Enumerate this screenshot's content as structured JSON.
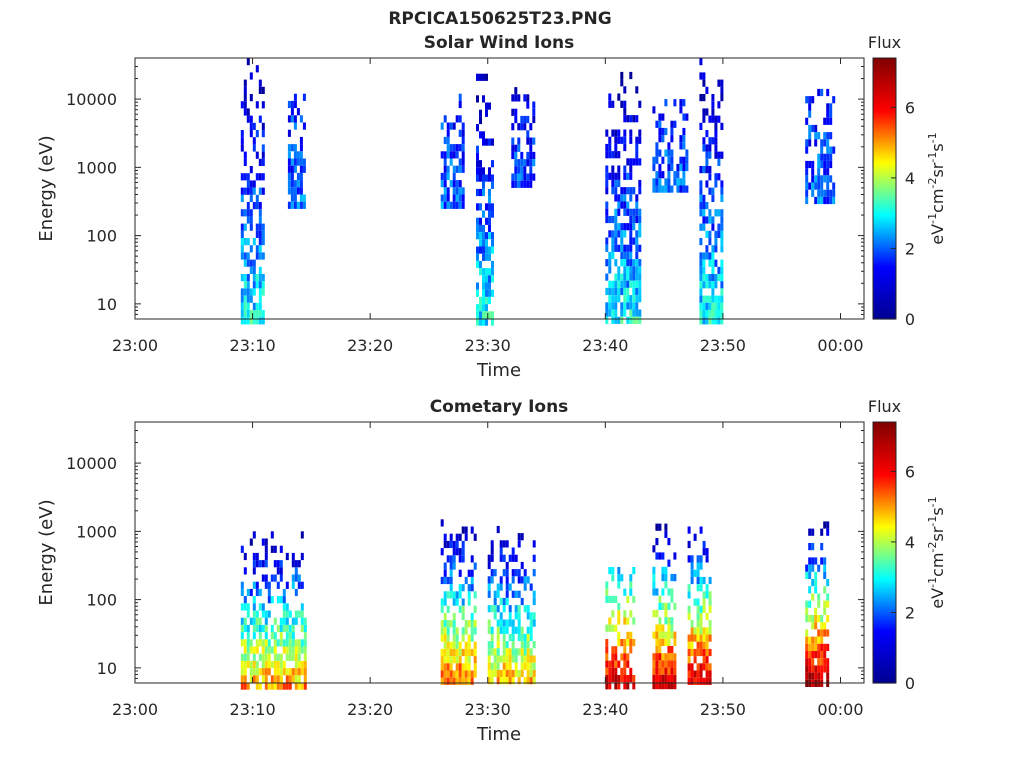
{
  "figure": {
    "title": "RPCICA150625T23.PNG"
  },
  "colorbar": {
    "label": "Flux",
    "unit_parts": [
      "eV",
      "-1",
      "cm",
      "-2",
      "sr",
      "-1",
      "s",
      "-1"
    ],
    "ticks": [
      0,
      2,
      4,
      6
    ],
    "range": [
      0,
      7.4
    ],
    "colormap": [
      "#00008f",
      "#0000ff",
      "#00ffff",
      "#ffff00",
      "#ff0000",
      "#800000"
    ]
  },
  "chart_data": [
    {
      "type": "heatmap",
      "title": "Solar Wind Ions",
      "xlabel": "Time",
      "ylabel": "Energy (eV)",
      "xlim": [
        "23:00",
        "00:02"
      ],
      "x_ticks": [
        "23:00",
        "23:10",
        "23:20",
        "23:30",
        "23:40",
        "23:50",
        "00:00"
      ],
      "y_scale": "log",
      "ylim": [
        6,
        40000
      ],
      "y_ticks": [
        10,
        100,
        1000,
        10000
      ],
      "colorbar_label": "Flux",
      "bursts": [
        {
          "t_start": "23:09",
          "t_end": "23:11",
          "e_min": 6,
          "e_max": 40000,
          "flux_low_energy": 3.0,
          "flux_high_energy": 0.5
        },
        {
          "t_start": "23:13",
          "t_end": "23:14.5",
          "e_min": 300,
          "e_max": 12000,
          "flux_low_energy": 2.0,
          "flux_high_energy": 1.5
        },
        {
          "t_start": "23:26",
          "t_end": "23:28",
          "e_min": 300,
          "e_max": 12000,
          "flux_low_energy": 2.0,
          "flux_high_energy": 1.5
        },
        {
          "t_start": "23:29",
          "t_end": "23:30.5",
          "e_min": 6,
          "e_max": 30000,
          "flux_low_energy": 3.0,
          "flux_high_energy": 0.5
        },
        {
          "t_start": "23:32",
          "t_end": "23:34",
          "e_min": 600,
          "e_max": 15000,
          "flux_low_energy": 2.0,
          "flux_high_energy": 1.0
        },
        {
          "t_start": "23:40",
          "t_end": "23:43",
          "e_min": 6,
          "e_max": 25000,
          "flux_low_energy": 3.0,
          "flux_high_energy": 0.5
        },
        {
          "t_start": "23:44",
          "t_end": "23:47",
          "e_min": 500,
          "e_max": 10000,
          "flux_low_energy": 2.0,
          "flux_high_energy": 1.5
        },
        {
          "t_start": "23:48",
          "t_end": "23:50",
          "e_min": 6,
          "e_max": 40000,
          "flux_low_energy": 3.0,
          "flux_high_energy": 0.5
        },
        {
          "t_start": "23:57",
          "t_end": "23:59.5",
          "e_min": 300,
          "e_max": 18000,
          "flux_low_energy": 2.0,
          "flux_high_energy": 1.5
        }
      ]
    },
    {
      "type": "heatmap",
      "title": "Cometary Ions",
      "xlabel": "Time",
      "ylabel": "Energy (eV)",
      "xlim": [
        "23:00",
        "00:02"
      ],
      "x_ticks": [
        "23:00",
        "23:10",
        "23:20",
        "23:30",
        "23:40",
        "23:50",
        "00:00"
      ],
      "y_scale": "log",
      "ylim": [
        6,
        40000
      ],
      "y_ticks": [
        10,
        100,
        1000,
        10000
      ],
      "colorbar_label": "Flux",
      "bursts": [
        {
          "t_start": "23:09",
          "t_end": "23:14.5",
          "e_min": 6,
          "e_max": 1000,
          "flux_low_energy": 5.0,
          "flux_high_energy": 0.5
        },
        {
          "t_start": "23:26",
          "t_end": "23:29",
          "e_min": 6,
          "e_max": 1500,
          "flux_low_energy": 5.5,
          "flux_high_energy": 0.5
        },
        {
          "t_start": "23:30",
          "t_end": "23:34",
          "e_min": 6,
          "e_max": 1200,
          "flux_low_energy": 5.0,
          "flux_high_energy": 0.5
        },
        {
          "t_start": "23:40",
          "t_end": "23:42.5",
          "e_min": 6,
          "e_max": 300,
          "flux_low_energy": 6.5,
          "flux_high_energy": 2.5
        },
        {
          "t_start": "23:44",
          "t_end": "23:46",
          "e_min": 6,
          "e_max": 1300,
          "flux_low_energy": 6.5,
          "flux_high_energy": 0.5
        },
        {
          "t_start": "23:47",
          "t_end": "23:49",
          "e_min": 6,
          "e_max": 1500,
          "flux_low_energy": 6.5,
          "flux_high_energy": 0.5
        },
        {
          "t_start": "23:57",
          "t_end": "23:59",
          "e_min": 6,
          "e_max": 1400,
          "flux_low_energy": 7.0,
          "flux_high_energy": 0.5
        }
      ]
    }
  ]
}
